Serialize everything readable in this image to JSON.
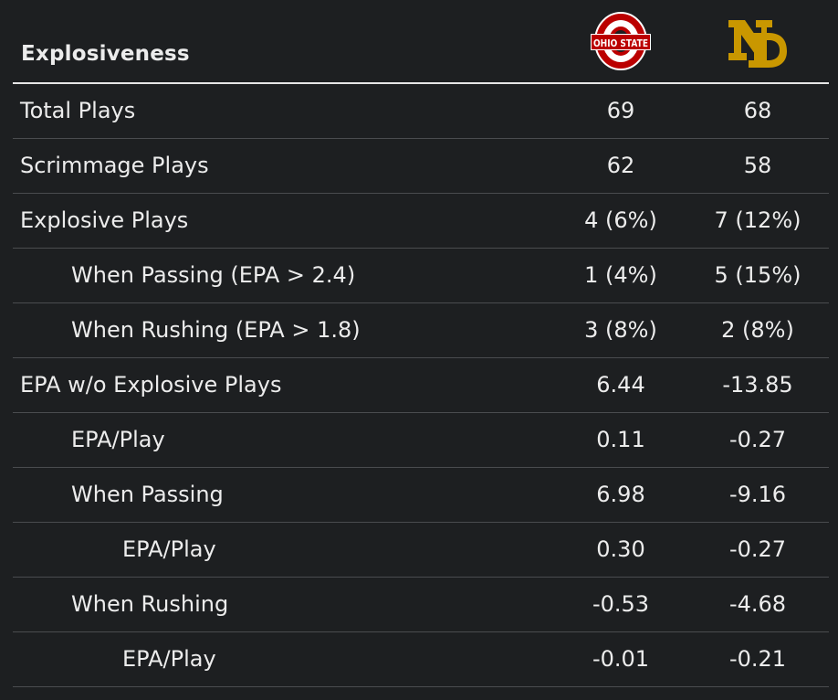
{
  "table": {
    "title": "Explosiveness",
    "teams": [
      {
        "name": "Ohio State",
        "logo_text": "OHIO STATE",
        "logo_icon": "ohio-state-logo",
        "color": "#bb0000"
      },
      {
        "name": "Notre Dame",
        "logo_text": "ND",
        "logo_icon": "notre-dame-logo",
        "color": "#c99700"
      }
    ],
    "rows": [
      {
        "label": "Total Plays",
        "indent": 0,
        "ohio_state": "69",
        "notre_dame": "68"
      },
      {
        "label": "Scrimmage Plays",
        "indent": 0,
        "ohio_state": "62",
        "notre_dame": "58"
      },
      {
        "label": "Explosive Plays",
        "indent": 0,
        "ohio_state": "4 (6%)",
        "notre_dame": "7 (12%)"
      },
      {
        "label": "When Passing (EPA > 2.4)",
        "indent": 1,
        "ohio_state": "1 (4%)",
        "notre_dame": "5 (15%)"
      },
      {
        "label": "When Rushing (EPA > 1.8)",
        "indent": 1,
        "ohio_state": "3 (8%)",
        "notre_dame": "2 (8%)"
      },
      {
        "label": "EPA w/o Explosive Plays",
        "indent": 0,
        "ohio_state": "6.44",
        "notre_dame": "-13.85"
      },
      {
        "label": "EPA/Play",
        "indent": 1,
        "ohio_state": "0.11",
        "notre_dame": "-0.27"
      },
      {
        "label": "When Passing",
        "indent": 1,
        "ohio_state": "6.98",
        "notre_dame": "-9.16"
      },
      {
        "label": "EPA/Play",
        "indent": 2,
        "ohio_state": "0.30",
        "notre_dame": "-0.27"
      },
      {
        "label": "When Rushing",
        "indent": 1,
        "ohio_state": "-0.53",
        "notre_dame": "-4.68"
      },
      {
        "label": "EPA/Play",
        "indent": 2,
        "ohio_state": "-0.01",
        "notre_dame": "-0.21"
      }
    ]
  }
}
